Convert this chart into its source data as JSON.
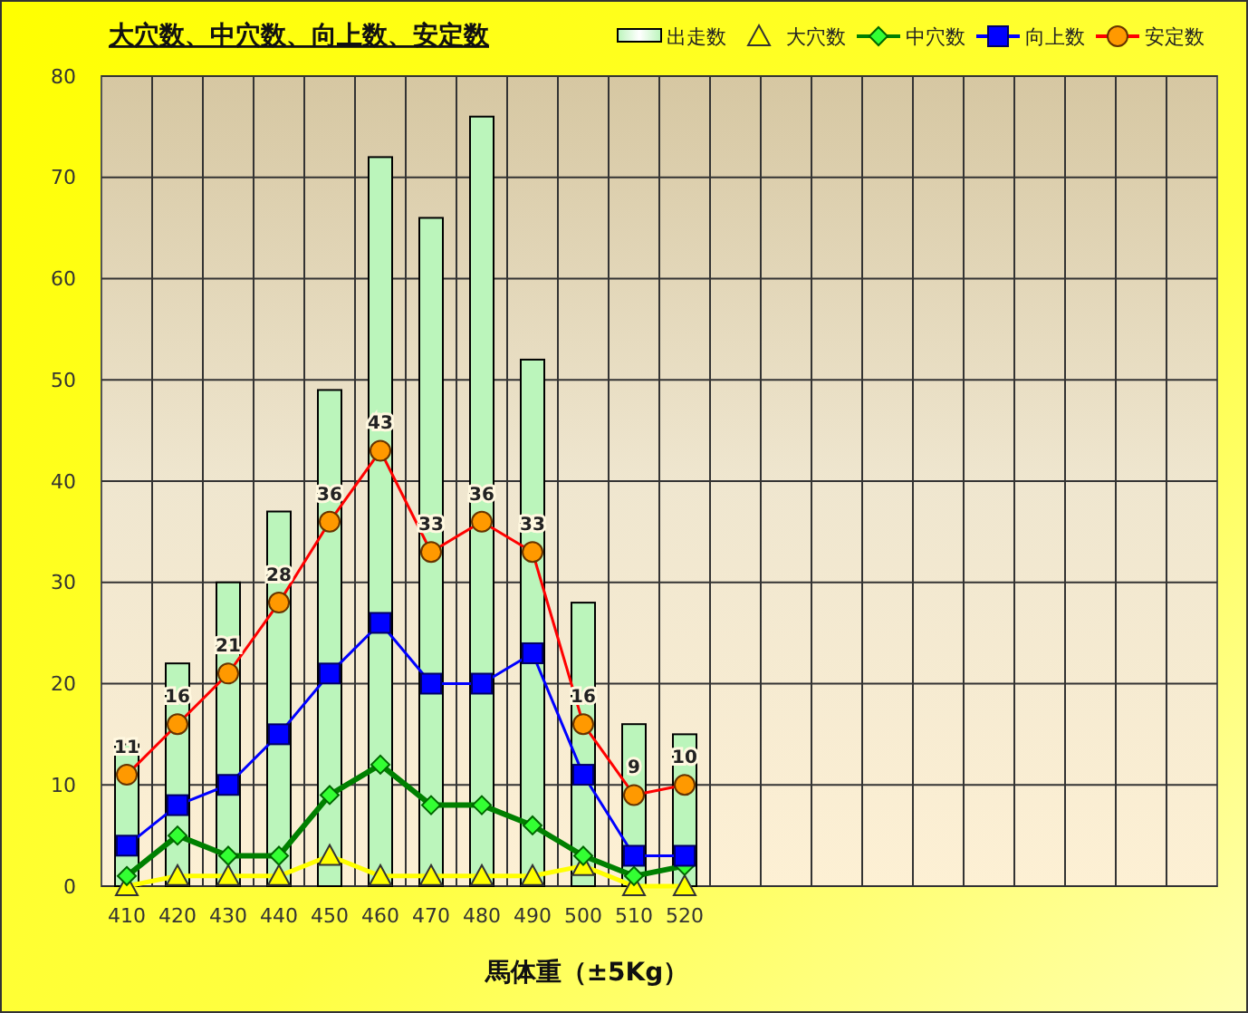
{
  "chart_data": {
    "type": "bar",
    "title": "大穴数、中穴数、向上数、安定数",
    "xlabel": "馬体重（±5Kg）",
    "categories": [
      "410",
      "420",
      "430",
      "440",
      "450",
      "460",
      "470",
      "480",
      "490",
      "500",
      "510",
      "520",
      null,
      null,
      null,
      null,
      null,
      null,
      null,
      null,
      null,
      null
    ],
    "ylim": [
      0,
      80
    ],
    "yticks": [
      0,
      10,
      20,
      30,
      40,
      50,
      60,
      70,
      80
    ],
    "grid": true,
    "legend": "top right",
    "series": [
      {
        "name": "出走数",
        "color": "#bbf5bb",
        "values": [
          14,
          22,
          30,
          37,
          49,
          72,
          66,
          76,
          52,
          28,
          16,
          15,
          null,
          null,
          null,
          null,
          null,
          null,
          null,
          null,
          null,
          null
        ]
      },
      {
        "name": "大穴数",
        "type": "line",
        "color": "#ffff00",
        "marker": "triangle",
        "values": [
          0,
          1,
          1,
          1,
          3,
          1,
          1,
          1,
          1,
          2,
          0,
          0,
          null,
          null,
          null,
          null,
          null,
          null,
          null,
          null,
          null,
          null
        ]
      },
      {
        "name": "中穴数",
        "type": "line",
        "color": "#008000",
        "marker": "diamond",
        "values": [
          1,
          5,
          3,
          3,
          9,
          12,
          8,
          8,
          6,
          3,
          1,
          2,
          null,
          null,
          null,
          null,
          null,
          null,
          null,
          null,
          null,
          null
        ]
      },
      {
        "name": "向上数",
        "type": "line",
        "color": "#0000ff",
        "marker": "square",
        "values": [
          4,
          8,
          10,
          15,
          21,
          26,
          20,
          20,
          23,
          11,
          3,
          3,
          null,
          null,
          null,
          null,
          null,
          null,
          null,
          null,
          null,
          null
        ]
      },
      {
        "name": "安定数",
        "type": "line",
        "color": "#ff0000",
        "marker": "circle",
        "values": [
          11,
          16,
          21,
          28,
          36,
          43,
          33,
          36,
          33,
          16,
          9,
          10,
          null,
          null,
          null,
          null,
          null,
          null,
          null,
          null,
          null,
          null
        ],
        "value_labels": [
          "11",
          "16",
          "21",
          "28",
          "36",
          "43",
          "33",
          "36",
          "33",
          "16",
          "9",
          "10",
          null,
          null,
          null,
          null,
          null,
          null,
          null,
          null,
          null,
          null
        ]
      }
    ]
  }
}
